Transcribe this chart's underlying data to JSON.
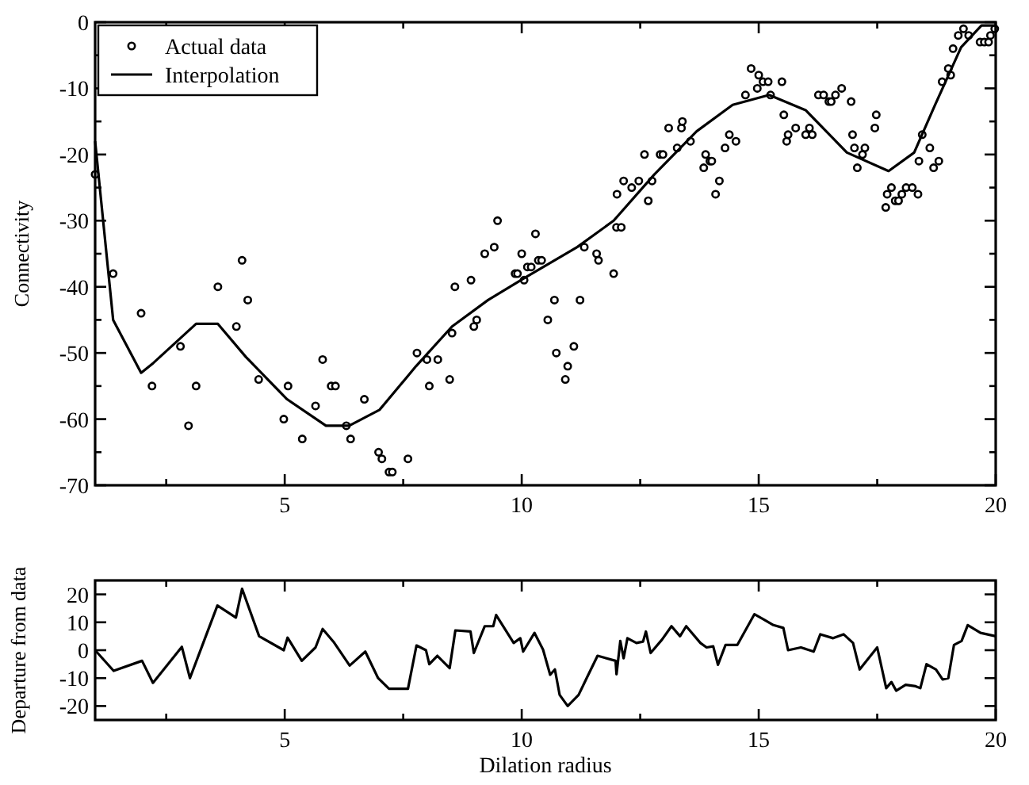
{
  "chart_data": [
    {
      "type": "scatter",
      "ylabel": "Connectivity",
      "xlim": [
        1,
        20
      ],
      "ylim": [
        -70,
        0
      ],
      "xticks": [
        {
          "value": 2.5,
          "label": null
        },
        5,
        {
          "value": 7.5,
          "label": null
        },
        10,
        {
          "value": 12.5,
          "label": null
        },
        15,
        {
          "value": 17.5,
          "label": null
        },
        20
      ],
      "yticks": [
        -70,
        {
          "value": -65,
          "label": null
        },
        -60,
        {
          "value": -55,
          "label": null
        },
        -50,
        {
          "value": -45,
          "label": null
        },
        -40,
        {
          "value": -35,
          "label": null
        },
        -30,
        {
          "value": -25,
          "label": null
        },
        -20,
        {
          "value": -15,
          "label": null
        },
        -10,
        {
          "value": -5,
          "label": null
        },
        0
      ],
      "grid": false,
      "legend": "top left",
      "series": [
        {
          "name": "Actual data",
          "marker": "circle",
          "color": "#000000",
          "x": [
            1.0,
            1.38,
            1.97,
            2.2,
            2.8,
            2.97,
            3.13,
            3.59,
            3.98,
            4.1,
            4.22,
            4.45,
            4.98,
            5.07,
            5.37,
            5.65,
            5.8,
            5.98,
            6.07,
            6.3,
            6.39,
            6.68,
            6.98,
            7.05,
            7.2,
            7.27,
            7.6,
            7.79,
            8.0,
            8.05,
            8.23,
            8.48,
            8.53,
            8.59,
            8.93,
            8.99,
            9.05,
            9.22,
            9.42,
            9.49,
            9.86,
            9.91,
            10.0,
            10.05,
            10.12,
            10.2,
            10.29,
            10.35,
            10.42,
            10.55,
            10.69,
            10.73,
            10.92,
            10.97,
            11.1,
            11.23,
            11.32,
            11.58,
            11.62,
            11.94,
            12.0,
            12.01,
            12.1,
            12.15,
            12.32,
            12.47,
            12.59,
            12.67,
            12.75,
            12.92,
            12.98,
            13.1,
            13.28,
            13.37,
            13.39,
            13.56,
            13.84,
            13.88,
            13.97,
            14.01,
            14.09,
            14.17,
            14.29,
            14.38,
            14.52,
            14.72,
            14.84,
            14.97,
            15.0,
            15.09,
            15.2,
            15.25,
            15.49,
            15.53,
            15.59,
            15.62,
            15.78,
            15.99,
            16.07,
            16.13,
            16.26,
            16.37,
            16.48,
            16.53,
            16.62,
            16.75,
            16.95,
            16.98,
            17.02,
            17.08,
            17.19,
            17.24,
            17.45,
            17.48,
            17.68,
            17.71,
            17.8,
            17.88,
            17.95,
            18.02,
            18.11,
            18.24,
            18.36,
            18.38,
            18.45,
            18.61,
            18.69,
            18.8,
            18.87,
            19.0,
            19.05,
            19.1,
            19.21,
            19.32,
            19.43,
            19.67,
            19.76,
            19.85,
            19.89,
            19.98
          ],
          "values": [
            -23,
            -38,
            -44,
            -55,
            -49,
            -61,
            -55,
            -40,
            -46,
            -36,
            -42,
            -54,
            -60,
            -55,
            -63,
            -58,
            -51,
            -55,
            -55,
            -61,
            -63,
            -57,
            -65,
            -66,
            -68,
            -68,
            -66,
            -50,
            -51,
            -55,
            -51,
            -54,
            -47,
            -40,
            -39,
            -46,
            -45,
            -35,
            -34,
            -30,
            -38,
            -38,
            -35,
            -39,
            -37,
            -37,
            -32,
            -36,
            -36,
            -45,
            -42,
            -50,
            -54,
            -52,
            -49,
            -42,
            -34,
            -35,
            -36,
            -38,
            -31,
            -26,
            -31,
            -24,
            -25,
            -24,
            -20,
            -27,
            -24,
            -20,
            -20,
            -16,
            -19,
            -16,
            -15,
            -18,
            -22,
            -20,
            -21,
            -21,
            -26,
            -24,
            -19,
            -17,
            -18,
            -11,
            -7,
            -10,
            -8,
            -9,
            -9,
            -11,
            -9,
            -14,
            -18,
            -17,
            -16,
            -17,
            -16,
            -17,
            -11,
            -11,
            -12,
            -12,
            -11,
            -10,
            -12,
            -17,
            -19,
            -22,
            -20,
            -19,
            -16,
            -14,
            -28,
            -26,
            -25,
            -27,
            -27,
            -26,
            -25,
            -25,
            -26,
            -21,
            -17,
            -19,
            -22,
            -21,
            -9,
            -7,
            -8,
            -4,
            -2,
            -1,
            -2,
            -3,
            -3,
            -3,
            -2,
            -1
          ]
        },
        {
          "name": "Interpolation",
          "type": "line",
          "marker": "none",
          "line_style": "solid",
          "color": "#000000",
          "x": [
            1.0,
            1.38,
            1.97,
            2.23,
            3.13,
            3.59,
            4.18,
            5.05,
            5.87,
            6.36,
            7.0,
            7.77,
            8.53,
            9.29,
            10.05,
            11.17,
            11.94,
            12.8,
            13.69,
            14.45,
            15.22,
            15.99,
            16.86,
            17.74,
            18.28,
            18.72,
            19.27,
            19.7,
            20.0
          ],
          "values": [
            -18,
            -45,
            -53,
            -51.5,
            -45.6,
            -45.6,
            -50.6,
            -57,
            -61,
            -61,
            -58.6,
            -52,
            -46,
            -42,
            -38.7,
            -34,
            -30,
            -23,
            -16.5,
            -12.5,
            -11,
            -13.3,
            -19.7,
            -22.5,
            -19.7,
            -12.5,
            -3.8,
            -0.5,
            -0.5
          ]
        }
      ]
    },
    {
      "type": "line",
      "xlabel": "Dilation radius",
      "ylabel": "Departure from data",
      "xlim": [
        1,
        20
      ],
      "ylim": [
        -25,
        25
      ],
      "xticks": [
        {
          "value": 2.5,
          "label": null
        },
        5,
        {
          "value": 7.5,
          "label": null
        },
        10,
        {
          "value": 12.5,
          "label": null
        },
        15,
        {
          "value": 17.5,
          "label": null
        },
        20
      ],
      "yticks": [
        -20,
        -10,
        0,
        10,
        20
      ],
      "grid": false,
      "legend": false,
      "marker": "none",
      "line_style": "solid",
      "series": [
        {
          "color": "#000000",
          "x": [
            1,
            1.39,
            1.99,
            2.22,
            2.83,
            3.0,
            3.58,
            3.97,
            4.1,
            4.46,
            4.98,
            5.06,
            5.36,
            5.65,
            5.8,
            6.03,
            6.37,
            6.7,
            6.97,
            7.2,
            7.6,
            7.78,
            7.98,
            8.05,
            8.22,
            8.48,
            8.6,
            8.92,
            8.99,
            9.22,
            9.4,
            9.46,
            9.83,
            9.97,
            10.03,
            10.27,
            10.45,
            10.6,
            10.7,
            10.8,
            10.97,
            11.2,
            11.37,
            11.6,
            11.98,
            12.0,
            12.08,
            12.15,
            12.23,
            12.42,
            12.56,
            12.62,
            12.72,
            12.96,
            13.16,
            13.34,
            13.47,
            13.77,
            13.9,
            14.04,
            14.14,
            14.3,
            14.55,
            14.91,
            15.11,
            15.31,
            15.52,
            15.62,
            15.89,
            16.16,
            16.3,
            16.57,
            16.79,
            16.99,
            17.13,
            17.5,
            17.69,
            17.8,
            17.9,
            18.1,
            18.31,
            18.41,
            18.54,
            18.74,
            18.88,
            19.0,
            19.12,
            19.28,
            19.41,
            19.68,
            20
          ],
          "values": [
            0,
            -7.4,
            -3.8,
            -11.7,
            1.2,
            -10,
            16,
            11.7,
            22,
            5,
            0,
            4.5,
            -3.8,
            1,
            7.6,
            3,
            -5.5,
            -0.5,
            -10,
            -13.8,
            -13.8,
            1.7,
            0,
            -5,
            -2,
            -6.4,
            7.1,
            6.7,
            -1,
            8.6,
            8.6,
            12.6,
            2.6,
            4.3,
            -0.5,
            6.2,
            0.2,
            -8.8,
            -6.9,
            -16,
            -20,
            -16,
            -10,
            -2,
            -3.8,
            -8.6,
            3.3,
            -2.9,
            4.3,
            2.6,
            3.1,
            6.7,
            -1,
            3.8,
            8.6,
            5,
            8.6,
            2.6,
            1,
            1.4,
            -5.2,
            1.9,
            1.9,
            12.9,
            11,
            9,
            8,
            0,
            1,
            -0.5,
            5.7,
            4.3,
            5.7,
            2.6,
            -6.9,
            1,
            -13.6,
            -11.4,
            -14.5,
            -12.4,
            -12.9,
            -13.6,
            -5,
            -6.9,
            -10.5,
            -10,
            1.9,
            3.3,
            9,
            6.2,
            5
          ]
        }
      ]
    }
  ]
}
